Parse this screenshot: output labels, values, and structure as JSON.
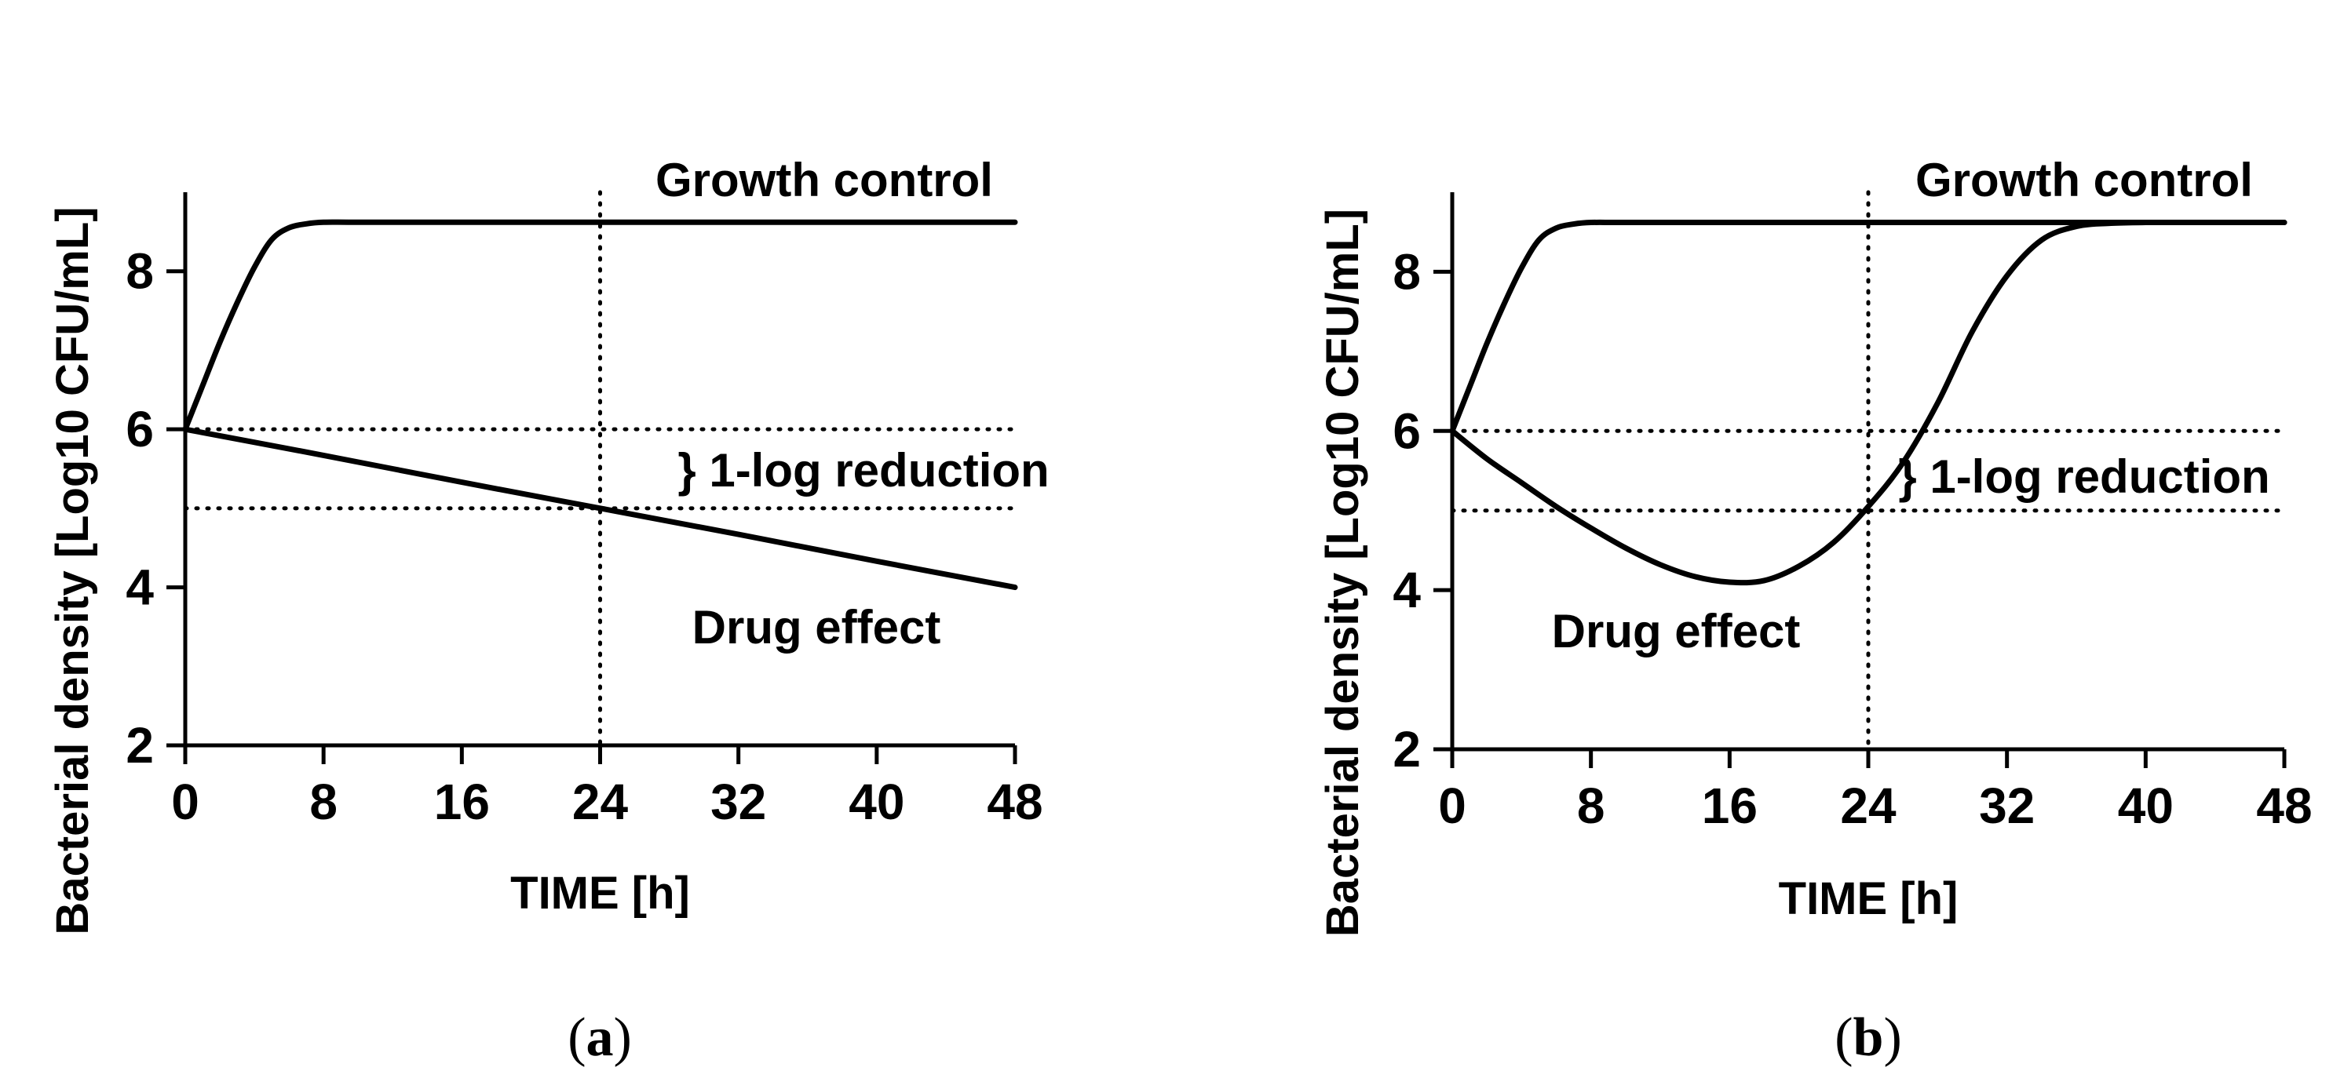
{
  "chart_data": [
    {
      "type": "line",
      "panel_label": "a",
      "xlabel": "TIME [h]",
      "ylabel": "Bacterial density [Log10 CFU/mL]",
      "xlim": [
        0,
        48
      ],
      "ylim": [
        2,
        9
      ],
      "xticks": [
        "0",
        "8",
        "16",
        "24",
        "32",
        "40",
        "48"
      ],
      "yticks": [
        "2",
        "4",
        "6",
        "8"
      ],
      "grid": false,
      "series": [
        {
          "name": "Growth control",
          "x": [
            0,
            1,
            2,
            3,
            4,
            5,
            6,
            7,
            8,
            10,
            16,
            24,
            32,
            40,
            48
          ],
          "y": [
            6.0,
            6.55,
            7.1,
            7.6,
            8.05,
            8.4,
            8.55,
            8.6,
            8.62,
            8.62,
            8.62,
            8.62,
            8.62,
            8.62,
            8.62
          ]
        },
        {
          "name": "Drug effect",
          "x": [
            0,
            8,
            16,
            24,
            32,
            40,
            48
          ],
          "y": [
            6.0,
            5.67,
            5.33,
            5.0,
            4.67,
            4.33,
            4.0
          ]
        }
      ],
      "reference_lines": {
        "horizontal": [
          6,
          5
        ],
        "vertical": [
          24
        ]
      },
      "annotations": {
        "growth_label": "Growth control",
        "reduction_label": "} 1-log reduction",
        "drug_label": "Drug effect"
      }
    },
    {
      "type": "line",
      "panel_label": "b",
      "xlabel": "TIME [h]",
      "ylabel": "Bacterial density [Log10  CFU/mL]",
      "xlim": [
        0,
        48
      ],
      "ylim": [
        2,
        9
      ],
      "xticks": [
        "0",
        "8",
        "16",
        "24",
        "32",
        "40",
        "48"
      ],
      "yticks": [
        "2",
        "4",
        "6",
        "8"
      ],
      "grid": false,
      "series": [
        {
          "name": "Growth control",
          "x": [
            0,
            1,
            2,
            3,
            4,
            5,
            6,
            7,
            8,
            10,
            16,
            24,
            32,
            40,
            48
          ],
          "y": [
            6.0,
            6.55,
            7.1,
            7.6,
            8.05,
            8.4,
            8.55,
            8.6,
            8.62,
            8.62,
            8.62,
            8.62,
            8.62,
            8.62,
            8.62
          ]
        },
        {
          "name": "Drug effect",
          "x": [
            0,
            2,
            4,
            6,
            8,
            10,
            12,
            14,
            16,
            18,
            20,
            22,
            24,
            26,
            28,
            30,
            32,
            34,
            36,
            38,
            40,
            44,
            48
          ],
          "y": [
            6.0,
            5.65,
            5.35,
            5.05,
            4.78,
            4.53,
            4.32,
            4.17,
            4.1,
            4.12,
            4.3,
            4.6,
            5.05,
            5.6,
            6.35,
            7.25,
            7.95,
            8.4,
            8.57,
            8.61,
            8.62,
            8.62,
            8.62
          ]
        }
      ],
      "reference_lines": {
        "horizontal": [
          6,
          5
        ],
        "vertical": [
          24
        ]
      },
      "annotations": {
        "growth_label": "Growth control",
        "reduction_label": "} 1-log reduction",
        "drug_label": "Drug effect"
      }
    }
  ]
}
